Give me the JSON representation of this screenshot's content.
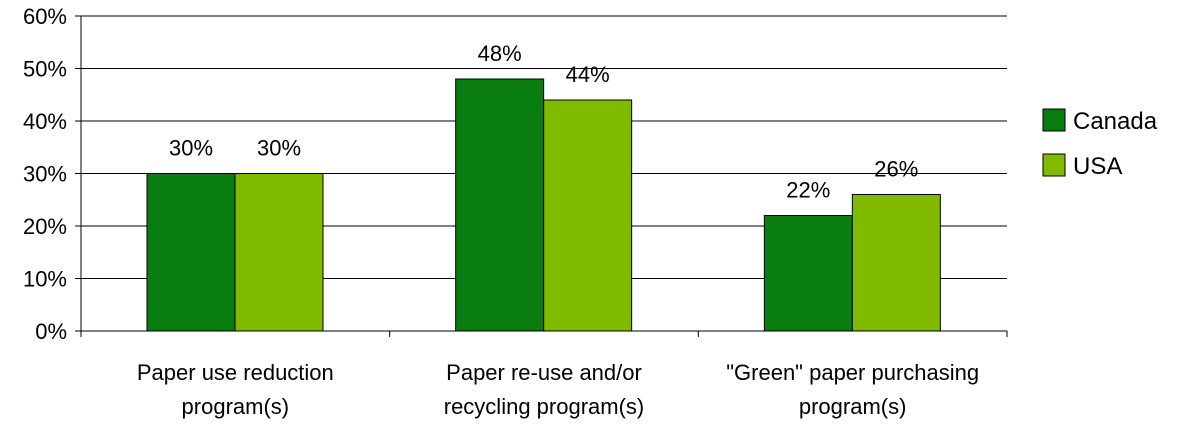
{
  "chart_data": {
    "type": "bar",
    "title": "",
    "xlabel": "",
    "ylabel": "",
    "categories": [
      [
        "Paper use reduction",
        "program(s)"
      ],
      [
        "Paper re-use and/or",
        "recycling program(s)"
      ],
      [
        "\"Green\" paper purchasing",
        "program(s)"
      ]
    ],
    "series": [
      {
        "name": "Canada",
        "color": "#0a7d10",
        "values": [
          30,
          48,
          22
        ],
        "labels": [
          "30%",
          "48%",
          "22%"
        ]
      },
      {
        "name": "USA",
        "color": "#80bb00",
        "values": [
          30,
          44,
          26
        ],
        "labels": [
          "30%",
          "44%",
          "26%"
        ]
      }
    ],
    "ylim": [
      0,
      60
    ],
    "yticks": [
      0,
      10,
      20,
      30,
      40,
      50,
      60
    ],
    "ytick_labels": [
      "0%",
      "10%",
      "20%",
      "30%",
      "40%",
      "50%",
      "60%"
    ],
    "grid": true,
    "legend_position": "right"
  }
}
